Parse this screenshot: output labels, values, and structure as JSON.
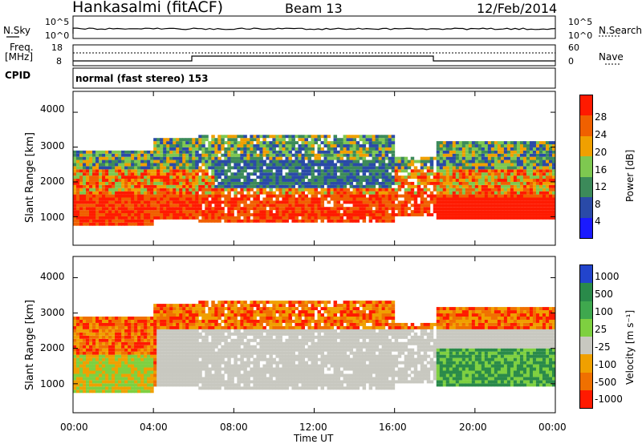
{
  "header": {
    "station": "Hankasalmi (fitACF)",
    "beam": "Beam 13",
    "date": "12/Feb/2014"
  },
  "summary_panels": {
    "nsky_label": "N.Sky",
    "nsearch_label": "N.Search",
    "count_ticks": [
      "10^5",
      "10^0"
    ],
    "freq_label_1": "Freq.",
    "freq_label_2": "[MHz]",
    "freq_ticks": [
      "18",
      "8"
    ],
    "nave_label": "Nave",
    "nave_ticks": [
      "60",
      "0"
    ],
    "cpid_label": "CPID",
    "cpid_value": "normal (fast stereo) 153"
  },
  "axes": {
    "ylabel": "Slant Range [km]",
    "xlabel": "Time UT",
    "y_ticks": [
      "1000",
      "2000",
      "3000",
      "4000"
    ],
    "x_ticks": [
      "00:00",
      "04:00",
      "08:00",
      "12:00",
      "16:00",
      "20:00",
      "00:00"
    ]
  },
  "colorbars": {
    "power": {
      "label": "Power [dB]",
      "ticks": [
        "4",
        "8",
        "12",
        "16",
        "20",
        "24",
        "28"
      ],
      "colors": [
        "#1a1aff",
        "#2a4aa8",
        "#3c8a5a",
        "#7ec850",
        "#f0a000",
        "#f06000",
        "#ff1a00"
      ]
    },
    "velocity": {
      "label": "Velocity [m s⁻¹]",
      "ticks": [
        "1000",
        "500",
        "100",
        "25",
        "-25",
        "-100",
        "-500",
        "-1000"
      ],
      "colors": [
        "#2244cc",
        "#2a8a4a",
        "#3fa84e",
        "#7ed040",
        "#c8c8c0",
        "#f0a000",
        "#f07000",
        "#ff1a00"
      ]
    }
  },
  "chart_data": [
    {
      "type": "heatmap",
      "name": "Power",
      "xlabel": "Time UT",
      "ylabel": "Slant Range [km]",
      "xlim": [
        0,
        24
      ],
      "ylim": [
        180,
        4600
      ],
      "colorbar_label": "Power [dB]",
      "colorbar_range": [
        0,
        30
      ]
    },
    {
      "type": "heatmap",
      "name": "Velocity",
      "xlabel": "Time UT",
      "ylabel": "Slant Range [km]",
      "xlim": [
        0,
        24
      ],
      "ylim": [
        180,
        4600
      ],
      "colorbar_label": "Velocity [m s⁻¹]",
      "colorbar_range": [
        -1000,
        1000
      ]
    }
  ]
}
